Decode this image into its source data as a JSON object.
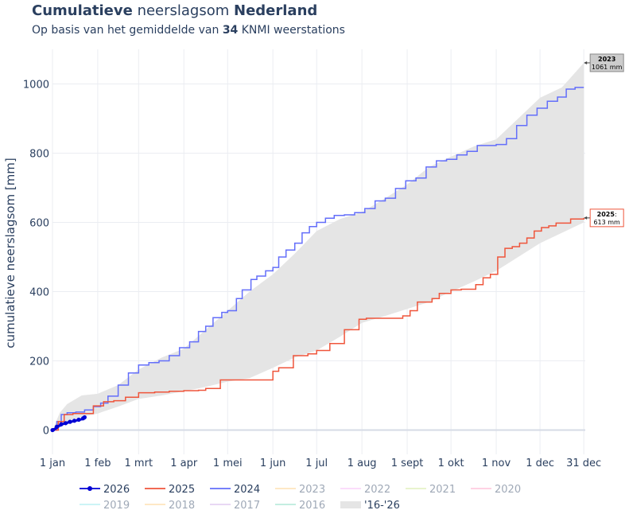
{
  "header": {
    "title_bold1": "Cumulatieve",
    "title_mid": " neerslagsom ",
    "title_bold2": "Nederland",
    "subtitle_pre": "Op basis van het gemiddelde van ",
    "subtitle_num": "34",
    "subtitle_post": " KNMI weerstations"
  },
  "chart_data": {
    "type": "line",
    "title": "Cumulatieve neerslagsom Nederland",
    "ylabel": "cumulatieve neerslagsom [mm]",
    "xlabel": "",
    "xlim": [
      0,
      365
    ],
    "ylim": [
      -70,
      1100
    ],
    "x_ticks": [
      {
        "day": 0,
        "label": "1 jan"
      },
      {
        "day": 31,
        "label": "1 feb"
      },
      {
        "day": 59,
        "label": "1 mrt"
      },
      {
        "day": 90,
        "label": "1 apr"
      },
      {
        "day": 120,
        "label": "1 mei"
      },
      {
        "day": 151,
        "label": "1 jun"
      },
      {
        "day": 181,
        "label": "1 jul"
      },
      {
        "day": 212,
        "label": "1 aug"
      },
      {
        "day": 243,
        "label": "1 sept"
      },
      {
        "day": 273,
        "label": "1 okt"
      },
      {
        "day": 304,
        "label": "1 nov"
      },
      {
        "day": 334,
        "label": "1 dec"
      },
      {
        "day": 364,
        "label": "31 dec"
      }
    ],
    "y_ticks": [
      0,
      200,
      400,
      600,
      800,
      1000
    ],
    "band": {
      "name": "'16-'26",
      "color": "#e5e5e5",
      "x": [
        0,
        5,
        10,
        20,
        31,
        45,
        59,
        75,
        90,
        105,
        120,
        135,
        151,
        166,
        181,
        197,
        212,
        228,
        243,
        258,
        273,
        289,
        304,
        319,
        334,
        349,
        364
      ],
      "upper": [
        0,
        50,
        75,
        100,
        105,
        130,
        175,
        210,
        235,
        290,
        345,
        400,
        450,
        510,
        575,
        610,
        630,
        670,
        710,
        760,
        790,
        820,
        840,
        900,
        960,
        990,
        1061
      ],
      "lower": [
        0,
        10,
        25,
        38,
        48,
        68,
        90,
        100,
        112,
        125,
        140,
        150,
        180,
        210,
        230,
        270,
        310,
        330,
        350,
        370,
        400,
        430,
        460,
        500,
        540,
        570,
        600
      ]
    },
    "series": [
      {
        "name": "2024",
        "color": "#636efa",
        "x": [
          0,
          3,
          6,
          10,
          16,
          22,
          28,
          33,
          38,
          45,
          52,
          59,
          66,
          73,
          80,
          87,
          94,
          100,
          105,
          110,
          116,
          120,
          126,
          130,
          136,
          140,
          146,
          151,
          155,
          160,
          166,
          171,
          176,
          181,
          187,
          193,
          200,
          207,
          214,
          221,
          228,
          235,
          242,
          249,
          256,
          263,
          270,
          277,
          284,
          291,
          298,
          304,
          311,
          318,
          325,
          332,
          339,
          346,
          352,
          358,
          364
        ],
        "values": [
          0,
          25,
          45,
          50,
          52,
          58,
          68,
          78,
          98,
          130,
          165,
          188,
          195,
          200,
          215,
          238,
          255,
          285,
          300,
          325,
          340,
          345,
          380,
          405,
          435,
          445,
          460,
          470,
          500,
          520,
          540,
          570,
          588,
          600,
          612,
          620,
          622,
          628,
          640,
          662,
          670,
          698,
          720,
          728,
          760,
          778,
          782,
          795,
          805,
          822,
          822,
          825,
          842,
          880,
          910,
          930,
          950,
          962,
          985,
          990,
          990
        ]
      },
      {
        "name": "2025",
        "color": "#ef553b",
        "x": [
          0,
          4,
          8,
          14,
          20,
          28,
          35,
          42,
          50,
          59,
          70,
          80,
          90,
          100,
          105,
          115,
          125,
          135,
          145,
          151,
          155,
          165,
          175,
          181,
          190,
          200,
          210,
          215,
          225,
          235,
          240,
          245,
          250,
          260,
          265,
          273,
          280,
          285,
          290,
          295,
          300,
          305,
          310,
          315,
          320,
          325,
          330,
          335,
          340,
          345,
          355,
          364
        ],
        "values": [
          0,
          25,
          45,
          48,
          48,
          70,
          82,
          85,
          95,
          108,
          110,
          112,
          114,
          115,
          120,
          145,
          145,
          145,
          145,
          170,
          180,
          215,
          220,
          230,
          250,
          290,
          320,
          323,
          323,
          323,
          330,
          345,
          370,
          380,
          395,
          405,
          407,
          407,
          420,
          440,
          450,
          500,
          525,
          530,
          540,
          555,
          575,
          585,
          590,
          598,
          610,
          613
        ]
      },
      {
        "name": "2026",
        "color": "#0000d4",
        "x": [
          0,
          1,
          2,
          3,
          4,
          5,
          6,
          7,
          8,
          9,
          10,
          11,
          12,
          13,
          14,
          15,
          16,
          17,
          18,
          19,
          20,
          21,
          22
        ],
        "values": [
          0,
          3,
          6,
          10,
          12,
          14,
          17,
          18,
          19,
          20,
          22,
          23,
          24,
          25,
          26,
          27,
          28,
          29,
          30,
          31,
          32,
          34,
          37
        ]
      }
    ],
    "annotations": [
      {
        "label": "2023",
        "value_text": "1061 mm",
        "day": 364,
        "value": 1061,
        "border": "#888888",
        "bg": "#cccccc"
      },
      {
        "label": "2025",
        "suffix": ":",
        "value_text": "613 mm",
        "day": 364,
        "value": 613,
        "border": "#ef553b",
        "bg": "#ffffff"
      }
    ],
    "legend": {
      "placement": "bottom",
      "items": [
        {
          "name": "2026",
          "color": "#0000d4",
          "active": true,
          "marker": "line-dot"
        },
        {
          "name": "2025",
          "color": "#ef553b",
          "active": true,
          "marker": "line"
        },
        {
          "name": "2024",
          "color": "#636efa",
          "active": true,
          "marker": "line"
        },
        {
          "name": "2023",
          "color": "#fec56f",
          "active": false,
          "marker": "line"
        },
        {
          "name": "2022",
          "color": "#f5a6f5",
          "active": false,
          "marker": "line"
        },
        {
          "name": "2021",
          "color": "#c5e585",
          "active": false,
          "marker": "line"
        },
        {
          "name": "2020",
          "color": "#ff8fbb",
          "active": false,
          "marker": "line"
        },
        {
          "name": "2019",
          "color": "#7fe3e8",
          "active": false,
          "marker": "line"
        },
        {
          "name": "2018",
          "color": "#fec56f",
          "active": false,
          "marker": "line"
        },
        {
          "name": "2017",
          "color": "#c79ee5",
          "active": false,
          "marker": "line"
        },
        {
          "name": "2016",
          "color": "#6ad6b3",
          "active": false,
          "marker": "line"
        },
        {
          "name": "'16-'26",
          "color": "#e5e5e5",
          "active": true,
          "marker": "band"
        }
      ]
    }
  }
}
